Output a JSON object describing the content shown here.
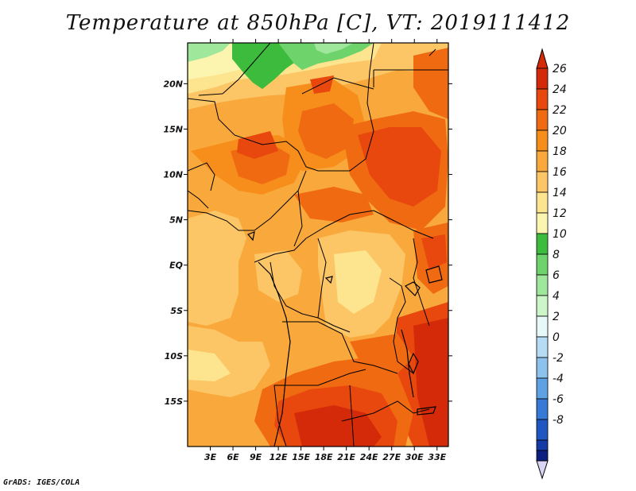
{
  "title": "Temperature at 850hPa [C], VT: 2019111412",
  "credit": "GrADS: IGES/COLA",
  "map": {
    "lon_range": [
      0,
      34.5
    ],
    "lat_range": [
      -20,
      24.5
    ],
    "lat_ticks": [
      {
        "value": 20,
        "label": "20N"
      },
      {
        "value": 15,
        "label": "15N"
      },
      {
        "value": 10,
        "label": "10N"
      },
      {
        "value": 5,
        "label": "5N"
      },
      {
        "value": 0,
        "label": "EQ"
      },
      {
        "value": -5,
        "label": "5S"
      },
      {
        "value": -10,
        "label": "10S"
      },
      {
        "value": -15,
        "label": "15S"
      }
    ],
    "lon_ticks": [
      {
        "value": 3,
        "label": "3E"
      },
      {
        "value": 6,
        "label": "6E"
      },
      {
        "value": 9,
        "label": "9E"
      },
      {
        "value": 12,
        "label": "12E"
      },
      {
        "value": 15,
        "label": "15E"
      },
      {
        "value": 18,
        "label": "18E"
      },
      {
        "value": 21,
        "label": "21E"
      },
      {
        "value": 24,
        "label": "24E"
      },
      {
        "value": 27,
        "label": "27E"
      },
      {
        "value": 30,
        "label": "30E"
      },
      {
        "value": 33,
        "label": "33E"
      }
    ]
  },
  "colorbar": {
    "levels": [
      {
        "label": "26",
        "color": "#d42a0a"
      },
      {
        "label": "24",
        "color": "#e8480e"
      },
      {
        "label": "22",
        "color": "#f06a12"
      },
      {
        "label": "20",
        "color": "#f78e1c"
      },
      {
        "label": "18",
        "color": "#f9a93c"
      },
      {
        "label": "16",
        "color": "#fcc667"
      },
      {
        "label": "14",
        "color": "#fde48f"
      },
      {
        "label": "12",
        "color": "#fcf5b0"
      },
      {
        "label": "10",
        "color": "#3cbb3c"
      },
      {
        "label": "8",
        "color": "#6ed36a"
      },
      {
        "label": "6",
        "color": "#9fe79a"
      },
      {
        "label": "4",
        "color": "#cdf6c8"
      },
      {
        "label": "2",
        "color": "#e6f8f8"
      },
      {
        "label": "0",
        "color": "#b6dcf4"
      },
      {
        "label": "-2",
        "color": "#8cc2ec"
      },
      {
        "label": "-4",
        "color": "#5fa2e3"
      },
      {
        "label": "-6",
        "color": "#3679d6"
      },
      {
        "label": "-8",
        "color": "#1f56c2"
      }
    ],
    "below_colors": [
      "#153aa6",
      "#0c1f80"
    ],
    "bottom_color": "#d9d6f5"
  }
}
